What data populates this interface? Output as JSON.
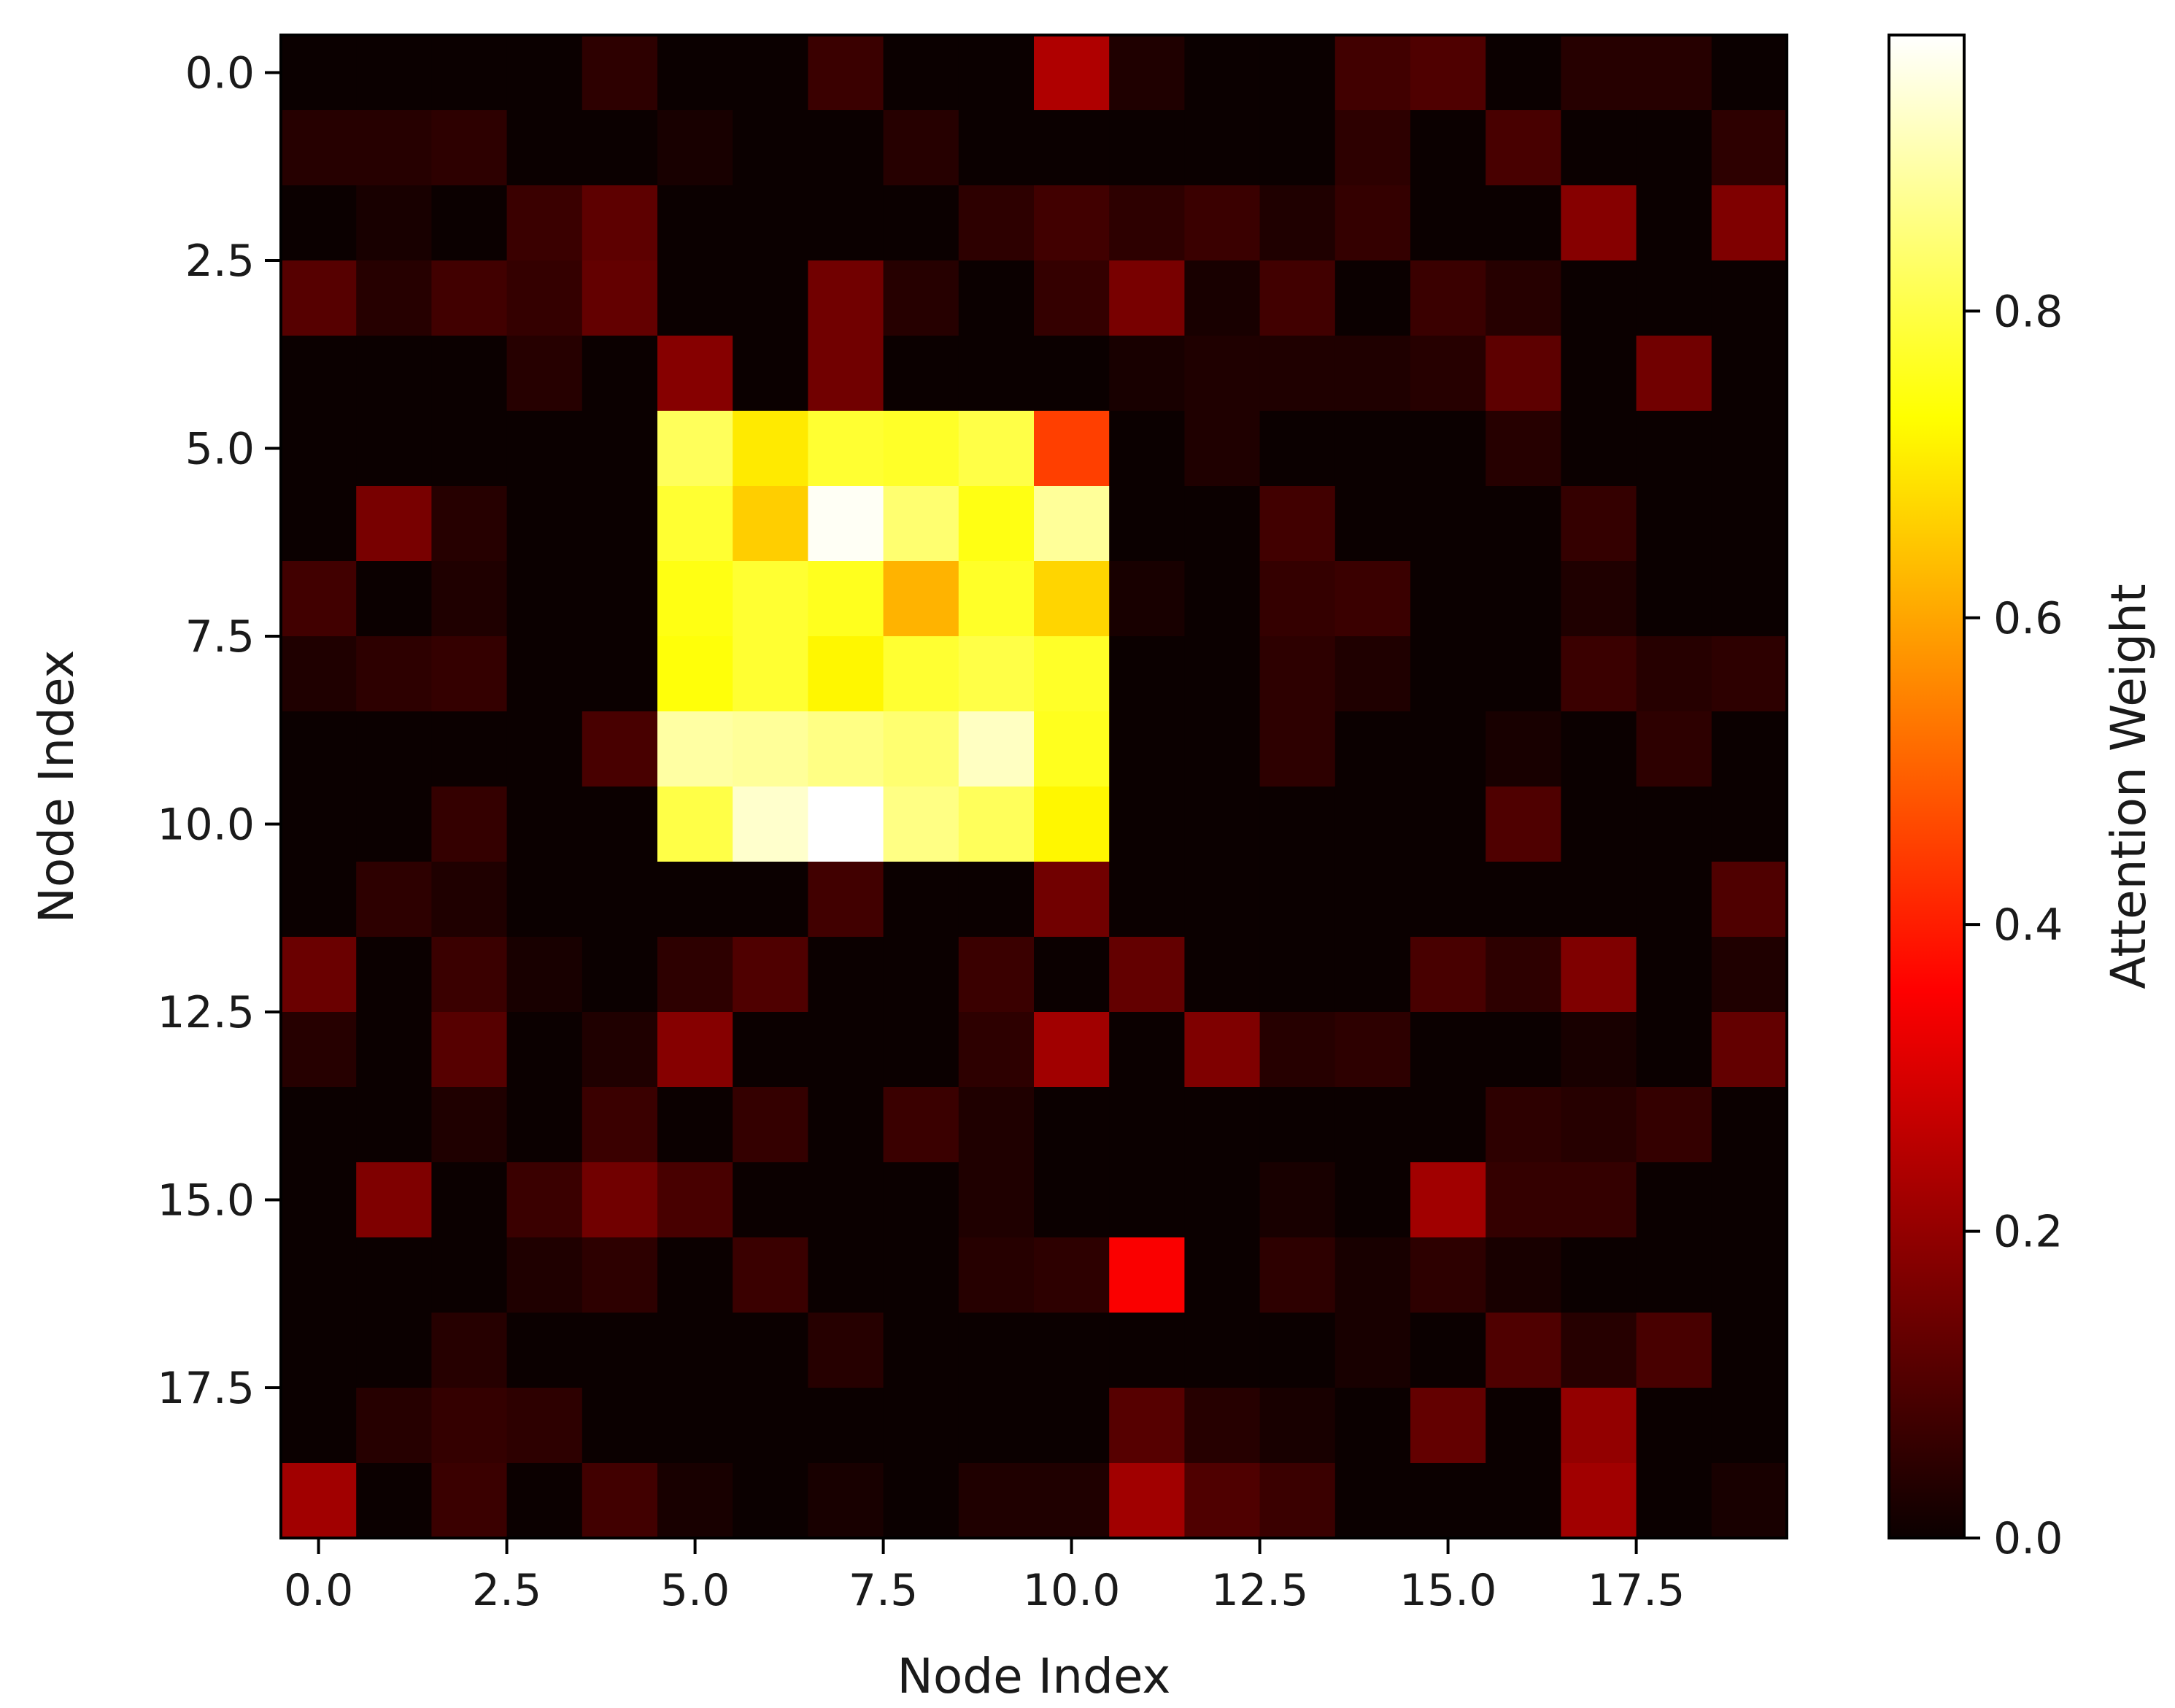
{
  "chart_data": {
    "type": "heatmap",
    "title": "",
    "xlabel": "Node Index",
    "ylabel": "Node Index",
    "colorbar_label": "Attention Weight",
    "colormap": "hot",
    "x_range": [
      -0.5,
      19.5
    ],
    "y_range": [
      -0.5,
      19.5
    ],
    "x_ticks": [
      0.0,
      2.5,
      5.0,
      7.5,
      10.0,
      12.5,
      15.0,
      17.5
    ],
    "x_tick_labels": [
      "0.0",
      "2.5",
      "5.0",
      "7.5",
      "10.0",
      "12.5",
      "15.0",
      "17.5"
    ],
    "y_ticks": [
      0.0,
      2.5,
      5.0,
      7.5,
      10.0,
      12.5,
      15.0,
      17.5
    ],
    "y_tick_labels": [
      "0.0",
      "2.5",
      "5.0",
      "7.5",
      "10.0",
      "12.5",
      "15.0",
      "17.5"
    ],
    "colorbar_range": [
      0.0,
      0.98
    ],
    "colorbar_ticks": [
      0.0,
      0.2,
      0.4,
      0.6,
      0.8
    ],
    "colorbar_tick_labels": [
      "0.0",
      "0.2",
      "0.4",
      "0.6",
      "0.8"
    ],
    "values": [
      [
        0.0,
        0.0,
        0.0,
        0.0,
        0.05,
        0.0,
        0.0,
        0.07,
        0.0,
        0.0,
        0.24,
        0.03,
        0.0,
        0.0,
        0.08,
        0.1,
        0.0,
        0.04,
        0.04,
        0.0
      ],
      [
        0.04,
        0.04,
        0.05,
        0.0,
        0.0,
        0.02,
        0.0,
        0.0,
        0.04,
        0.0,
        0.0,
        0.0,
        0.0,
        0.0,
        0.05,
        0.0,
        0.09,
        0.0,
        0.0,
        0.05
      ],
      [
        0.0,
        0.02,
        0.0,
        0.07,
        0.12,
        0.0,
        0.0,
        0.0,
        0.0,
        0.05,
        0.08,
        0.05,
        0.07,
        0.03,
        0.06,
        0.0,
        0.0,
        0.18,
        0.0,
        0.17
      ],
      [
        0.11,
        0.04,
        0.08,
        0.06,
        0.13,
        0.0,
        0.0,
        0.15,
        0.04,
        0.0,
        0.06,
        0.16,
        0.02,
        0.08,
        0.0,
        0.07,
        0.04,
        0.0,
        0.0,
        0.0
      ],
      [
        0.0,
        0.0,
        0.0,
        0.04,
        0.0,
        0.18,
        0.0,
        0.15,
        0.0,
        0.0,
        0.0,
        0.02,
        0.03,
        0.03,
        0.03,
        0.04,
        0.12,
        0.0,
        0.15,
        0.0
      ],
      [
        0.0,
        0.0,
        0.0,
        0.0,
        0.0,
        0.82,
        0.7,
        0.78,
        0.77,
        0.8,
        0.45,
        0.0,
        0.03,
        0.0,
        0.0,
        0.0,
        0.04,
        0.0,
        0.0,
        0.0
      ],
      [
        0.0,
        0.16,
        0.04,
        0.0,
        0.0,
        0.78,
        0.66,
        0.97,
        0.84,
        0.75,
        0.88,
        0.0,
        0.0,
        0.08,
        0.0,
        0.0,
        0.0,
        0.06,
        0.0,
        0.0
      ],
      [
        0.08,
        0.0,
        0.03,
        0.0,
        0.0,
        0.75,
        0.78,
        0.76,
        0.62,
        0.77,
        0.67,
        0.02,
        0.0,
        0.06,
        0.07,
        0.0,
        0.0,
        0.03,
        0.0,
        0.0
      ],
      [
        0.03,
        0.05,
        0.06,
        0.0,
        0.0,
        0.74,
        0.78,
        0.72,
        0.78,
        0.8,
        0.77,
        0.0,
        0.0,
        0.05,
        0.03,
        0.0,
        0.0,
        0.07,
        0.04,
        0.05
      ],
      [
        0.0,
        0.0,
        0.0,
        0.0,
        0.09,
        0.89,
        0.88,
        0.86,
        0.84,
        0.92,
        0.76,
        0.0,
        0.0,
        0.05,
        0.0,
        0.0,
        0.02,
        0.0,
        0.05,
        0.0
      ],
      [
        0.0,
        0.0,
        0.06,
        0.0,
        0.0,
        0.8,
        0.93,
        0.98,
        0.86,
        0.82,
        0.72,
        0.0,
        0.0,
        0.0,
        0.0,
        0.0,
        0.1,
        0.0,
        0.0,
        0.0
      ],
      [
        0.0,
        0.05,
        0.03,
        0.0,
        0.0,
        0.0,
        0.0,
        0.08,
        0.0,
        0.0,
        0.15,
        0.0,
        0.0,
        0.0,
        0.0,
        0.0,
        0.0,
        0.0,
        0.0,
        0.1
      ],
      [
        0.14,
        0.0,
        0.07,
        0.02,
        0.0,
        0.05,
        0.1,
        0.0,
        0.0,
        0.07,
        0.0,
        0.13,
        0.0,
        0.0,
        0.0,
        0.09,
        0.05,
        0.17,
        0.0,
        0.03
      ],
      [
        0.04,
        0.0,
        0.11,
        0.0,
        0.03,
        0.18,
        0.0,
        0.0,
        0.0,
        0.05,
        0.22,
        0.0,
        0.17,
        0.04,
        0.05,
        0.0,
        0.0,
        0.02,
        0.0,
        0.13
      ],
      [
        0.0,
        0.0,
        0.03,
        0.0,
        0.07,
        0.0,
        0.06,
        0.0,
        0.07,
        0.03,
        0.0,
        0.0,
        0.0,
        0.0,
        0.0,
        0.0,
        0.05,
        0.04,
        0.06,
        0.0
      ],
      [
        0.0,
        0.17,
        0.0,
        0.07,
        0.15,
        0.09,
        0.0,
        0.0,
        0.0,
        0.03,
        0.0,
        0.0,
        0.0,
        0.02,
        0.0,
        0.22,
        0.06,
        0.06,
        0.0,
        0.0
      ],
      [
        0.0,
        0.0,
        0.0,
        0.03,
        0.05,
        0.0,
        0.07,
        0.0,
        0.0,
        0.04,
        0.05,
        0.35,
        0.0,
        0.05,
        0.02,
        0.05,
        0.02,
        0.0,
        0.0,
        0.0
      ],
      [
        0.0,
        0.0,
        0.04,
        0.0,
        0.0,
        0.0,
        0.0,
        0.04,
        0.0,
        0.0,
        0.0,
        0.0,
        0.0,
        0.0,
        0.02,
        0.0,
        0.1,
        0.04,
        0.09,
        0.0
      ],
      [
        0.0,
        0.04,
        0.06,
        0.05,
        0.0,
        0.0,
        0.0,
        0.0,
        0.0,
        0.0,
        0.0,
        0.11,
        0.04,
        0.02,
        0.0,
        0.13,
        0.0,
        0.2,
        0.0,
        0.0
      ],
      [
        0.22,
        0.0,
        0.07,
        0.0,
        0.08,
        0.02,
        0.0,
        0.02,
        0.0,
        0.03,
        0.03,
        0.22,
        0.1,
        0.07,
        0.0,
        0.0,
        0.0,
        0.22,
        0.0,
        0.02
      ]
    ]
  }
}
